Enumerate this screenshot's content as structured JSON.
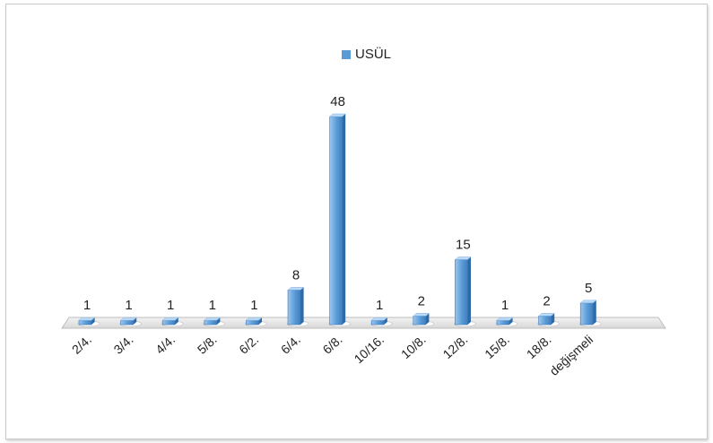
{
  "chart_data": {
    "type": "bar",
    "categories": [
      "2/4.",
      "3/4.",
      "4/4.",
      "5/8.",
      "6/2.",
      "6/4.",
      "6/8.",
      "10/16.",
      "10/8.",
      "12/8.",
      "15/8.",
      "18/8.",
      "değişmeli"
    ],
    "series": [
      {
        "name": "USÜL",
        "values": [
          1,
          1,
          1,
          1,
          1,
          8,
          48,
          1,
          2,
          15,
          1,
          2,
          5
        ],
        "color": "#5b9bd5"
      }
    ],
    "data_labels": [
      "1",
      "1",
      "1",
      "1",
      "1",
      "8",
      "48",
      "1",
      "2",
      "15",
      "1",
      "2",
      "5"
    ],
    "legend": {
      "position": "top-center"
    },
    "grid": false,
    "style": "3d-column",
    "ylim": [
      0,
      48
    ]
  }
}
